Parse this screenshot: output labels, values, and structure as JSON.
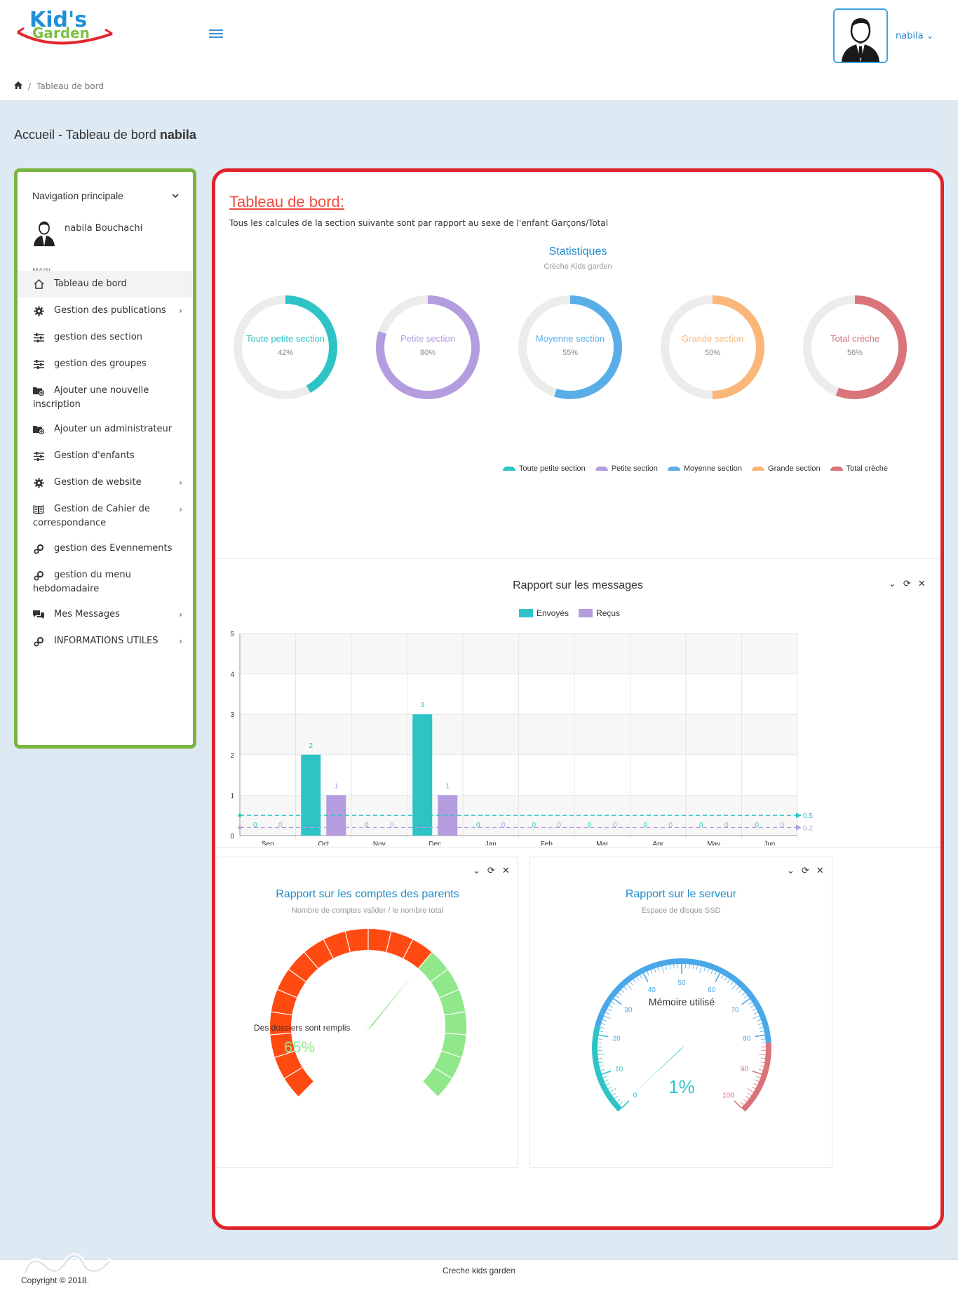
{
  "header": {
    "user_name": "nabila",
    "user_chevron": "⌄"
  },
  "breadcrumb": {
    "separator": "/",
    "current": "Tableau de bord"
  },
  "page": {
    "title_prefix": "Accueil - Tableau de bord",
    "title_user": "nabila"
  },
  "sidebar": {
    "heading": "Navigation principale",
    "user_full_name": "nabila Bouchachi",
    "section_label": "MAIN",
    "items": [
      {
        "label": "Tableau de bord",
        "icon": "home-icon",
        "arrow": ""
      },
      {
        "label": "Gestion des publications",
        "icon": "gear-icon",
        "arrow": "›"
      },
      {
        "label": "gestion des section",
        "icon": "sliders-icon",
        "arrow": ""
      },
      {
        "label": "gestion des groupes",
        "icon": "sliders-icon",
        "arrow": ""
      },
      {
        "label": "Ajouter une nouvelle inscription",
        "icon": "folder-add-icon",
        "arrow": ""
      },
      {
        "label": "Ajouter un administrateur",
        "icon": "folder-add-icon",
        "arrow": ""
      },
      {
        "label": "Gestion d'enfants",
        "icon": "sliders-icon",
        "arrow": ""
      },
      {
        "label": "Gestion de website",
        "icon": "gear-icon",
        "arrow": "›"
      },
      {
        "label": "Gestion de Cahier de correspondance",
        "icon": "book-icon",
        "arrow": "›"
      },
      {
        "label": "gestion des Evennements",
        "icon": "gears-icon",
        "arrow": ""
      },
      {
        "label": "gestion du menu hebdomadaire",
        "icon": "gears-icon",
        "arrow": ""
      },
      {
        "label": "Mes Messages",
        "icon": "chat-icon",
        "arrow": "›"
      },
      {
        "label": "INFORMATIONS UTILES",
        "icon": "gears-icon",
        "arrow": "›"
      }
    ]
  },
  "dashboard": {
    "title": "Tableau de bord:",
    "subtitle": "Tous les calcules de la section suivante sont par rapport au sexe de l'enfant Garçons/Total",
    "stats_title": "Statistiques",
    "stats_subtitle": "Crèche Kids garden",
    "donuts": [
      {
        "label": "Toute petite section",
        "percent": 42,
        "percent_label": "42%",
        "color": "#2ec4c6"
      },
      {
        "label": "Petite section",
        "percent": 80,
        "percent_label": "80%",
        "color": "#b39ddf"
      },
      {
        "label": "Moyenne section",
        "percent": 55,
        "percent_label": "55%",
        "color": "#5aaee8"
      },
      {
        "label": "Grande section",
        "percent": 50,
        "percent_label": "50%",
        "color": "#fbb77a"
      },
      {
        "label": "Total crèche",
        "percent": 56,
        "percent_label": "56%",
        "color": "#d9747a"
      }
    ],
    "track_color": "#ececec"
  },
  "messages_panel": {
    "title": "Rapport sur les messages",
    "tool_collapse": "⌄",
    "tool_refresh": "⟳",
    "tool_close": "✕"
  },
  "chart_data": {
    "type": "bar",
    "categories": [
      "Sep",
      "Oct",
      "Nov",
      "Dec",
      "Jan",
      "Feb",
      "Mar",
      "Apr",
      "May",
      "Jun"
    ],
    "series": [
      {
        "name": "Envoyés",
        "values": [
          0,
          2,
          0,
          3,
          0,
          0,
          0,
          0,
          0,
          0
        ],
        "color": "#2ec4c6",
        "average": 0.5,
        "average_label": "0.5"
      },
      {
        "name": "Reçus",
        "values": [
          0,
          1,
          0,
          1,
          0,
          0,
          0,
          0,
          0,
          0
        ],
        "color": "#b39ddf",
        "average": 0.2,
        "average_label": "0.2"
      }
    ],
    "ylim": [
      0,
      5
    ],
    "yticks": [
      "0",
      "1",
      "2",
      "3",
      "4",
      "5"
    ],
    "grid": true,
    "legend": "top-center"
  },
  "parents_panel": {
    "title": "Rapport sur les comptes des parents",
    "subtitle": "Nombre de comptes valider / le nombre total",
    "gauge_label": "Des dossiers sont remplis",
    "value": 65,
    "value_label": "65%",
    "color_fill": "#90e88a",
    "color_low": "#ff4a12",
    "tool_collapse": "⌄",
    "tool_refresh": "⟳",
    "tool_close": "✕"
  },
  "server_panel": {
    "title": "Rapport sur le serveur",
    "subtitle": "Espace de disque SSD",
    "gauge_label": "Mémoire utilisé",
    "value": 1,
    "value_label": "1%",
    "ticks": [
      "0",
      "10",
      "20",
      "30",
      "40",
      "50",
      "60",
      "70",
      "80",
      "90",
      "100"
    ],
    "tool_collapse": "⌄",
    "tool_refresh": "⟳",
    "tool_close": "✕"
  },
  "footer": {
    "center": "Creche kids garden",
    "left": "Copyright © 2018."
  },
  "logo": {
    "line1": "Kid's",
    "line2": "Garden"
  }
}
